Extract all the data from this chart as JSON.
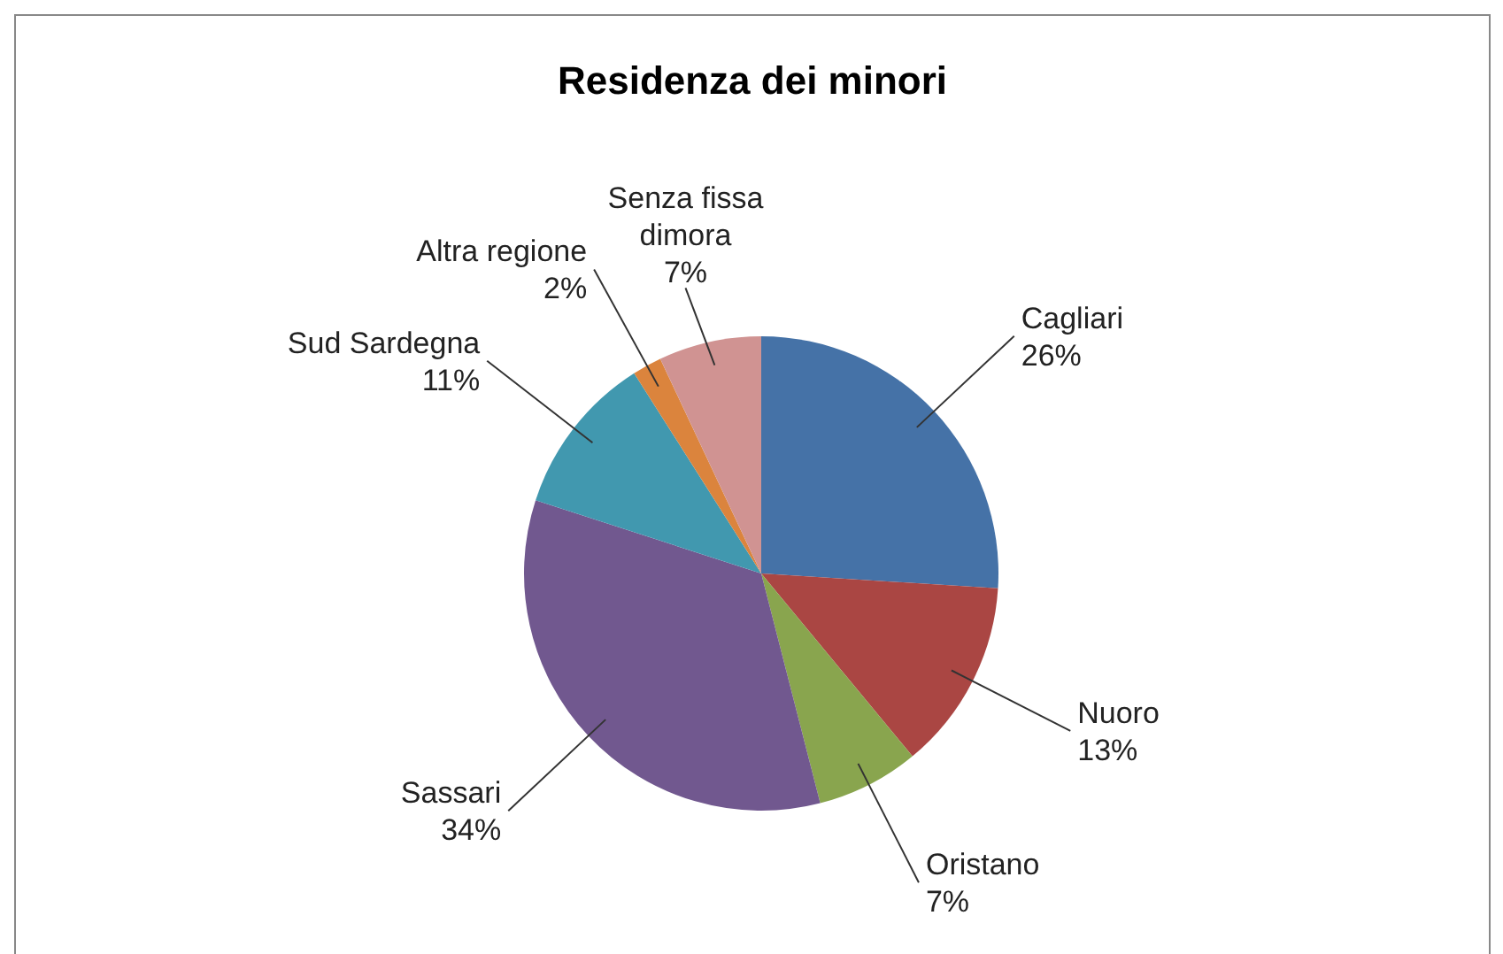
{
  "chart_data": {
    "type": "pie",
    "title": "Residenza dei minori",
    "categories": [
      "Cagliari",
      "Nuoro",
      "Oristano",
      "Sassari",
      "Sud Sardegna",
      "Altra regione",
      "Senza fissa dimora"
    ],
    "values": [
      26,
      13,
      7,
      34,
      11,
      2,
      7
    ],
    "value_labels": [
      "26%",
      "13%",
      "7%",
      "34%",
      "11%",
      "2%",
      "7%"
    ],
    "colors": [
      "#4572a7",
      "#aa4643",
      "#89a54e",
      "#71588f",
      "#4198af",
      "#db843d",
      "#d09392"
    ],
    "legend": false
  }
}
